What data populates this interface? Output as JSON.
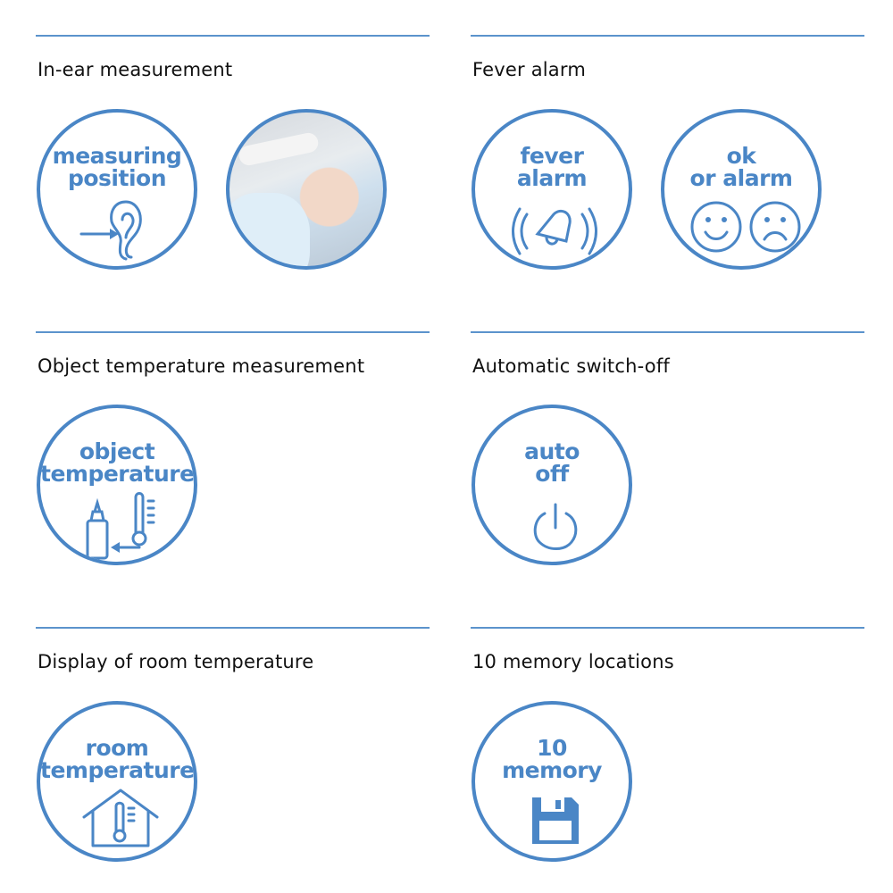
{
  "sections": [
    {
      "title": "In-ear measurement",
      "badge": [
        "measuring",
        "position"
      ],
      "icon": "ear-arrow-icon"
    },
    {
      "title": "Fever alarm",
      "badge": [
        "fever",
        "alarm"
      ],
      "badge2": [
        "ok",
        "or alarm"
      ],
      "icon": "bell-alarm-icon"
    },
    {
      "title": "Object temperature measurement",
      "badge": [
        "object",
        "temperature"
      ],
      "icon": "bottle-thermometer-icon"
    },
    {
      "title": "Automatic switch-off",
      "badge": [
        "auto",
        "off"
      ],
      "icon": "power-icon"
    },
    {
      "title": "Display of room temperature",
      "badge": [
        "room",
        "temperature"
      ],
      "icon": "house-thermometer-icon"
    },
    {
      "title": "10 memory locations",
      "badge": [
        "10",
        "memory"
      ],
      "icon": "floppy-disk-icon"
    }
  ],
  "colors": {
    "accent": "#4a86c6",
    "rule": "#5b93cc"
  }
}
